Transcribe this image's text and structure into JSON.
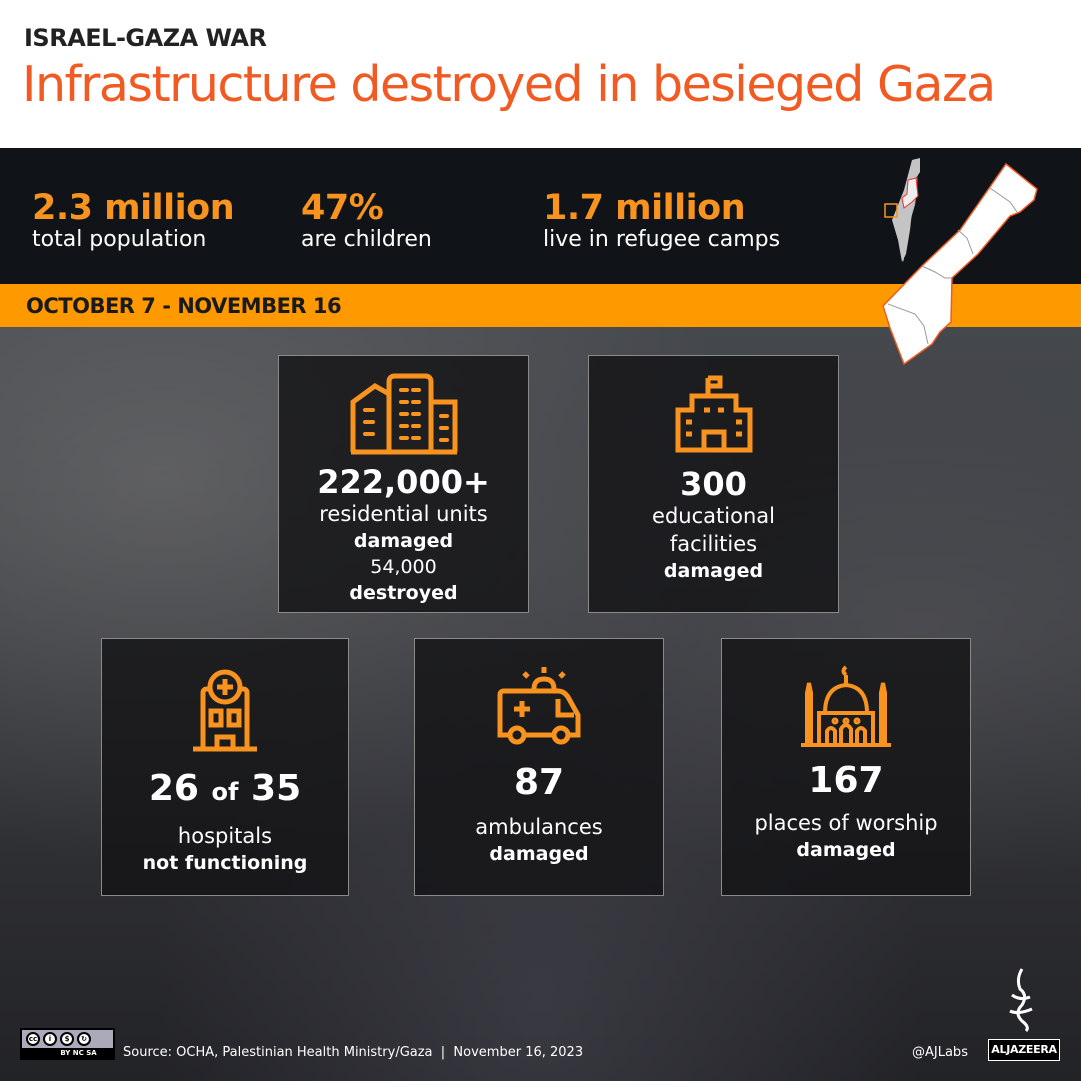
{
  "header": {
    "kicker": "ISRAEL-GAZA WAR",
    "title": "Infrastructure destroyed in besieged Gaza"
  },
  "stats": [
    {
      "value": "2.3 million",
      "label": "total population"
    },
    {
      "value": "47%",
      "label": "are children"
    },
    {
      "value": "1.7 million",
      "label": "live in refugee camps"
    }
  ],
  "banner": {
    "period": "OCTOBER 7 - NOVEMBER 16"
  },
  "cards": {
    "residential": {
      "icon": "buildings-icon",
      "value": "222,000+",
      "label": "residential units",
      "status": "damaged",
      "sub_value": "54,000",
      "sub_status": "destroyed"
    },
    "education": {
      "icon": "school-icon",
      "value": "300",
      "label_1": "educational",
      "label_2": "facilities",
      "status": "damaged"
    },
    "hospitals": {
      "icon": "hospital-icon",
      "value_a": "26",
      "of": "of",
      "value_b": "35",
      "label": "hospitals",
      "status": "not functioning"
    },
    "ambulances": {
      "icon": "ambulance-icon",
      "value": "87",
      "label": "ambulances",
      "status": "damaged"
    },
    "worship": {
      "icon": "mosque-icon",
      "value": "167",
      "label": "places of worship",
      "status": "damaged"
    }
  },
  "footer": {
    "license": "BY NC SA",
    "source": "Source: OCHA, Palestinian Health Ministry/Gaza  |  November 16, 2023",
    "handle": "@AJLabs",
    "brand": "ALJAZEERA"
  },
  "colors": {
    "accent": "#ff9900",
    "title": "#f15a22",
    "icon": "#f7931e",
    "dark": "#101317"
  }
}
